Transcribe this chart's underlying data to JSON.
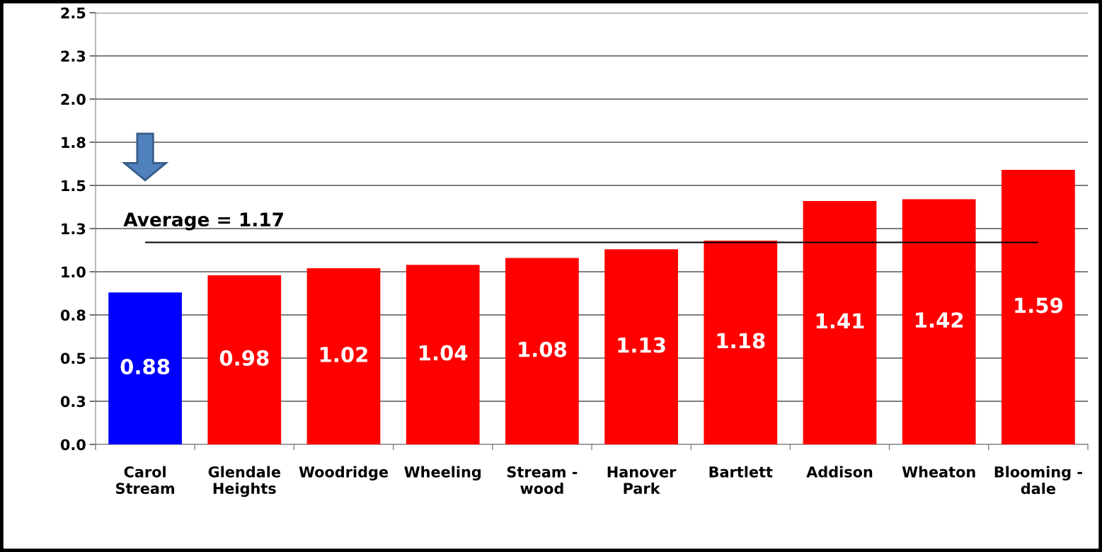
{
  "chart_data": {
    "type": "bar",
    "categories": [
      "Carol\nStream",
      "Glendale\nHeights",
      "Woodridge",
      "Wheeling",
      "Stream -\nwood",
      "Hanover\nPark",
      "Bartlett",
      "Addison",
      "Wheaton",
      "Blooming -\ndale"
    ],
    "values": [
      0.88,
      0.98,
      1.02,
      1.04,
      1.08,
      1.13,
      1.18,
      1.41,
      1.42,
      1.59
    ],
    "colors": [
      "#0000ff",
      "#ff0000",
      "#ff0000",
      "#ff0000",
      "#ff0000",
      "#ff0000",
      "#ff0000",
      "#ff0000",
      "#ff0000",
      "#ff0000"
    ],
    "ylim": [
      0,
      2.5
    ],
    "yticks": [
      {
        "value": 0,
        "label": "0.0"
      },
      {
        "value": 0.25,
        "label": "0.3"
      },
      {
        "value": 0.5,
        "label": "0.5"
      },
      {
        "value": 0.75,
        "label": "0.8"
      },
      {
        "value": 1.0,
        "label": "1.0"
      },
      {
        "value": 1.25,
        "label": "1.3"
      },
      {
        "value": 1.5,
        "label": "1.5"
      },
      {
        "value": 1.75,
        "label": "1.8"
      },
      {
        "value": 2.0,
        "label": "2.0"
      },
      {
        "value": 2.25,
        "label": "2.3"
      },
      {
        "value": 2.5,
        "label": "2.5"
      }
    ],
    "grid": "y",
    "legend": false,
    "data_labels": true,
    "ref_lines": [
      {
        "axis": "y",
        "value": 1.17,
        "label": "Average = 1.17",
        "color": "#000000"
      }
    ]
  }
}
